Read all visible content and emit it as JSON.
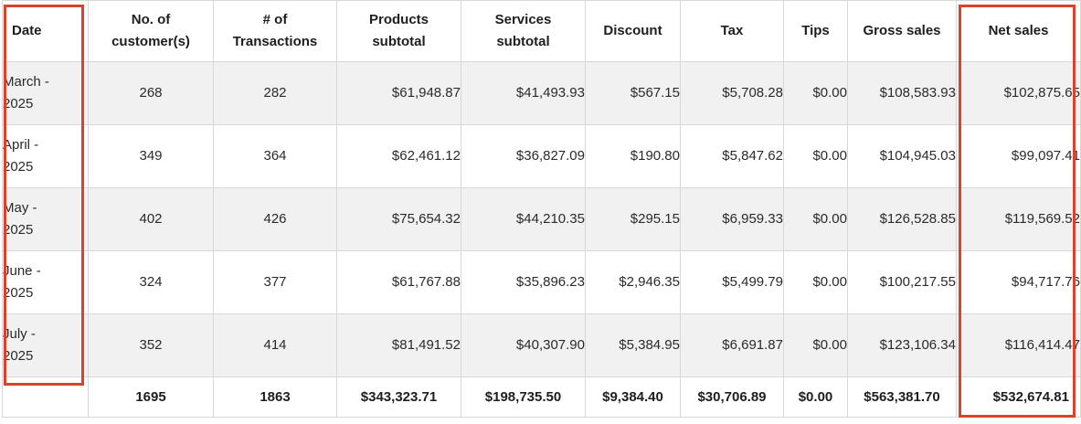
{
  "table": {
    "headers": {
      "date": "Date",
      "customers": "No. of\ncustomer(s)",
      "transactions": "# of\nTransactions",
      "products": "Products\nsubtotal",
      "services": "Services\nsubtotal",
      "discount": "Discount",
      "tax": "Tax",
      "tips": "Tips",
      "gross": "Gross sales",
      "net": "Net sales"
    },
    "rows": [
      {
        "date": "March -\n2025",
        "customers": "268",
        "transactions": "282",
        "products": "$61,948.87",
        "services": "$41,493.93",
        "discount": "$567.15",
        "tax": "$5,708.28",
        "tips": "$0.00",
        "gross": "$108,583.93",
        "net": "$102,875.65"
      },
      {
        "date": "April -\n2025",
        "customers": "349",
        "transactions": "364",
        "products": "$62,461.12",
        "services": "$36,827.09",
        "discount": "$190.80",
        "tax": "$5,847.62",
        "tips": "$0.00",
        "gross": "$104,945.03",
        "net": "$99,097.41"
      },
      {
        "date": "May -\n2025",
        "customers": "402",
        "transactions": "426",
        "products": "$75,654.32",
        "services": "$44,210.35",
        "discount": "$295.15",
        "tax": "$6,959.33",
        "tips": "$0.00",
        "gross": "$126,528.85",
        "net": "$119,569.52"
      },
      {
        "date": "June -\n2025",
        "customers": "324",
        "transactions": "377",
        "products": "$61,767.88",
        "services": "$35,896.23",
        "discount": "$2,946.35",
        "tax": "$5,499.79",
        "tips": "$0.00",
        "gross": "$100,217.55",
        "net": "$94,717.76"
      },
      {
        "date": "July -\n2025",
        "customers": "352",
        "transactions": "414",
        "products": "$81,491.52",
        "services": "$40,307.90",
        "discount": "$5,384.95",
        "tax": "$6,691.87",
        "tips": "$0.00",
        "gross": "$123,106.34",
        "net": "$116,414.47"
      }
    ],
    "totals": {
      "date": "",
      "customers": "1695",
      "transactions": "1863",
      "products": "$343,323.71",
      "services": "$198,735.50",
      "discount": "$9,384.40",
      "tax": "$30,706.89",
      "tips": "$0.00",
      "gross": "$563,381.70",
      "net": "$532,674.81"
    }
  },
  "colors": {
    "highlight_border": "#d9432c",
    "row_stripe": "#f1f1f1",
    "grid_line": "#d7d7d7"
  }
}
